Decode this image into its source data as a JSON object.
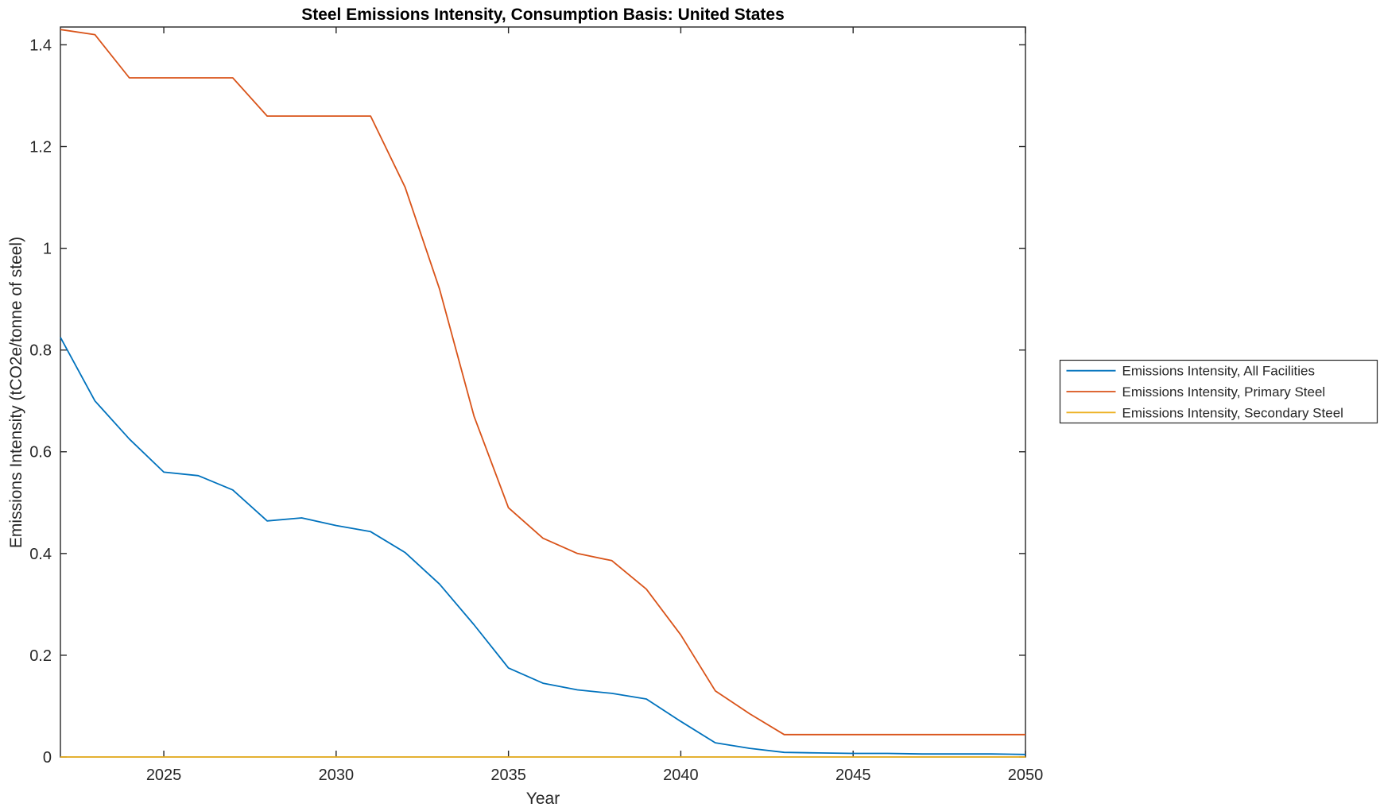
{
  "chart_data": {
    "type": "line",
    "title": "Steel Emissions Intensity, Consumption Basis: United States",
    "xlabel": "Year",
    "ylabel": "Emissions Intensity (tCO2e/tonne of steel)",
    "xlim": [
      2022,
      2050
    ],
    "ylim": [
      0,
      1.435
    ],
    "x_ticks": [
      2025,
      2030,
      2035,
      2040,
      2045,
      2050
    ],
    "x_tick_labels": [
      "2025",
      "2030",
      "2035",
      "2040",
      "2045",
      "2050"
    ],
    "y_ticks": [
      0,
      0.2,
      0.4,
      0.6,
      0.8,
      1,
      1.2,
      1.4
    ],
    "y_tick_labels": [
      "0",
      "0.2",
      "0.4",
      "0.6",
      "0.8",
      "1",
      "1.2",
      "1.4"
    ],
    "grid": false,
    "legend_position": "right-outside",
    "x": [
      2022,
      2023,
      2024,
      2025,
      2026,
      2027,
      2028,
      2029,
      2030,
      2031,
      2032,
      2033,
      2034,
      2035,
      2036,
      2037,
      2038,
      2039,
      2040,
      2041,
      2042,
      2043,
      2044,
      2045,
      2046,
      2047,
      2048,
      2049,
      2050
    ],
    "series": [
      {
        "name": "Emissions Intensity, All Facilities",
        "color": "#0072BD",
        "values": [
          0.825,
          0.7,
          0.625,
          0.56,
          0.553,
          0.525,
          0.464,
          0.47,
          0.455,
          0.443,
          0.402,
          0.34,
          0.26,
          0.175,
          0.145,
          0.132,
          0.125,
          0.114,
          0.07,
          0.028,
          0.017,
          0.009,
          0.008,
          0.007,
          0.007,
          0.006,
          0.006,
          0.006,
          0.005
        ]
      },
      {
        "name": "Emissions Intensity, Primary Steel",
        "color": "#D95319",
        "values": [
          1.43,
          1.42,
          1.335,
          1.335,
          1.335,
          1.335,
          1.26,
          1.26,
          1.26,
          1.26,
          1.12,
          0.92,
          0.67,
          0.49,
          0.43,
          0.4,
          0.386,
          0.33,
          0.24,
          0.13,
          0.085,
          0.044,
          0.044,
          0.044,
          0.044,
          0.044,
          0.044,
          0.044,
          0.044
        ]
      },
      {
        "name": "Emissions Intensity, Secondary Steel",
        "color": "#EDB120",
        "values": [
          0,
          0,
          0,
          0,
          0,
          0,
          0,
          0,
          0,
          0,
          0,
          0,
          0,
          0,
          0,
          0,
          0,
          0,
          0,
          0,
          0,
          0,
          0,
          0,
          0,
          0,
          0,
          0,
          0
        ]
      }
    ],
    "axis_color": "#262626",
    "background": "#FFFFFF"
  }
}
